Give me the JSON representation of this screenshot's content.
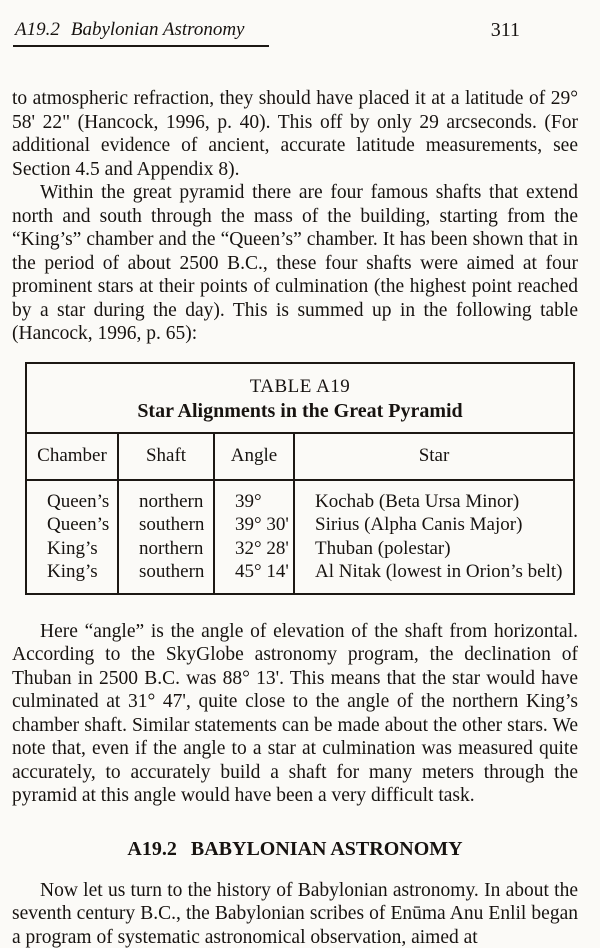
{
  "page_header": {
    "section_label": "A19.2",
    "section_title": "Babylonian Astronomy",
    "page_number": "311"
  },
  "paragraphs": {
    "p1": "to atmospheric refraction, they should have placed it at a latitude of 29° 58' 22\" (Hancock, 1996, p. 40). This off by only 29 arcseconds. (For additional evidence of ancient, accurate latitude measurements, see Section 4.5 and Appendix 8).",
    "p2": "Within the great pyramid there are four famous shafts that extend north and south through the mass of the building, starting from the “King’s” chamber and the “Queen’s” chamber. It has been shown that in the period of about 2500 B.C., these four shafts were aimed at four prominent stars at their points of culmination (the highest point reached by a star during the day). This is summed up in the following table (Hancock, 1996, p. 65):",
    "p3": "Here “angle” is the angle of elevation of the shaft from horizontal. According to the SkyGlobe astronomy program, the declination of Thuban in 2500 B.C. was 88° 13'. This means that the star would have culminated at 31° 47', quite close to the angle of the northern King’s chamber shaft. Similar statements can be made about the other stars. We note that, even if the angle to a star at culmination was measured quite accurately, to accurately build a shaft for many meters through the pyramid at this angle would have been a very difficult task.",
    "p4": "Now let us turn to the history of Babylonian astronomy. In about the seventh century B.C., the Babylonian scribes of Enūma Anu Enlil began a program of systematic astronomical observation, aimed at"
  },
  "table": {
    "title_line1": "TABLE A19",
    "title_line2": "Star Alignments in the Great Pyramid",
    "columns": [
      "Chamber",
      "Shaft",
      "Angle",
      "Star"
    ],
    "rows": [
      [
        "Queen’s",
        "northern",
        "39°",
        "Kochab (Beta Ursa Minor)"
      ],
      [
        "Queen’s",
        "southern",
        "39° 30'",
        "Sirius (Alpha Canis Major)"
      ],
      [
        "King’s",
        "northern",
        "32° 28'",
        "Thuban (polestar)"
      ],
      [
        "King’s",
        "southern",
        "45° 14'",
        "Al Nitak (lowest in Orion’s belt)"
      ]
    ]
  },
  "section_heading": {
    "number": "A19.2",
    "title": "BABYLONIAN ASTRONOMY"
  },
  "colors": {
    "ink": "#171310",
    "paper": "#fbfaf7",
    "rule": "#1c1814"
  }
}
